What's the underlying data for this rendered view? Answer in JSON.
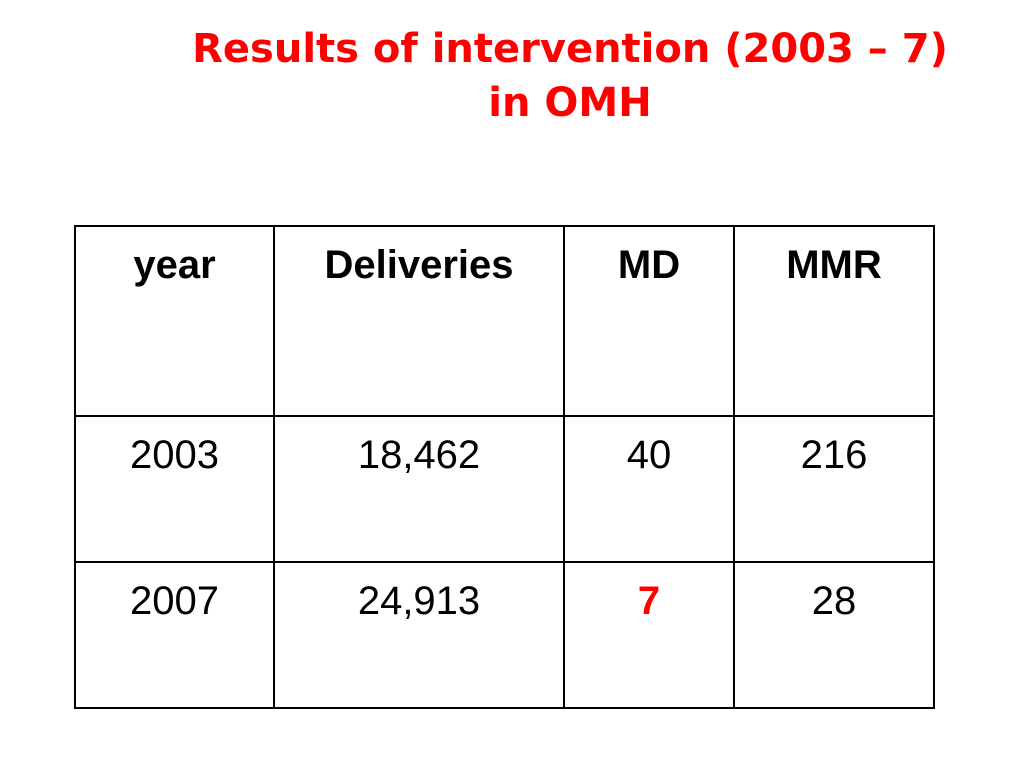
{
  "title": {
    "line1": "Results of intervention (2003 – 7)",
    "line2": "in OMH",
    "color": "#ff0000"
  },
  "table": {
    "headers": [
      "year",
      "Deliveries",
      "MD",
      "MMR"
    ],
    "rows": [
      {
        "year": "2003",
        "deliveries": "18,462",
        "md": "40",
        "mmr": "216"
      },
      {
        "year": "2007",
        "deliveries": "24,913",
        "md": "7",
        "mmr": "28"
      }
    ],
    "highlight_color": "#ff0000"
  }
}
